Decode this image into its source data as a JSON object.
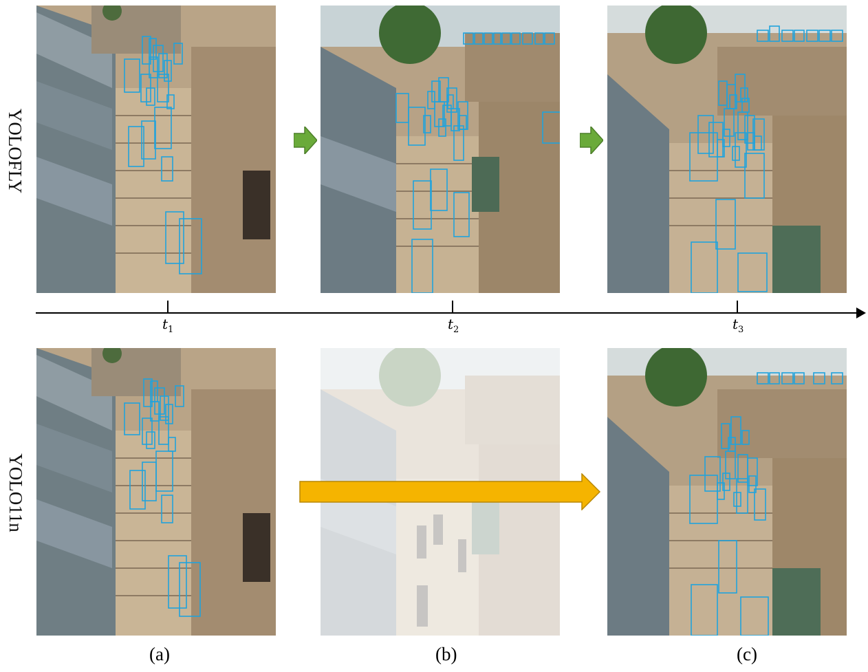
{
  "rows": [
    {
      "label": "YOLOFLY"
    },
    {
      "label": "YOLO11n"
    }
  ],
  "timeline": {
    "ticks": [
      {
        "symbol": "t",
        "sub": "1"
      },
      {
        "symbol": "t",
        "sub": "2"
      },
      {
        "symbol": "t",
        "sub": "3"
      }
    ]
  },
  "captions": [
    "(a)",
    "(b)",
    "(c)"
  ],
  "colors": {
    "detection_box": "#20a3dc",
    "step_arrow": "#6aaa3a",
    "skip_arrow": "#f5b400"
  },
  "panels": [
    {
      "row": "YOLOFLY",
      "time": "t1",
      "detections": 18
    },
    {
      "row": "YOLOFLY",
      "time": "t2",
      "detections": 30
    },
    {
      "row": "YOLOFLY",
      "time": "t3",
      "detections": 31
    },
    {
      "row": "YOLO11n",
      "time": "t1",
      "detections": 18
    },
    {
      "row": "YOLO11n",
      "time": "t2",
      "detections": 0
    },
    {
      "row": "YOLO11n",
      "time": "t3",
      "detections": 24
    }
  ]
}
